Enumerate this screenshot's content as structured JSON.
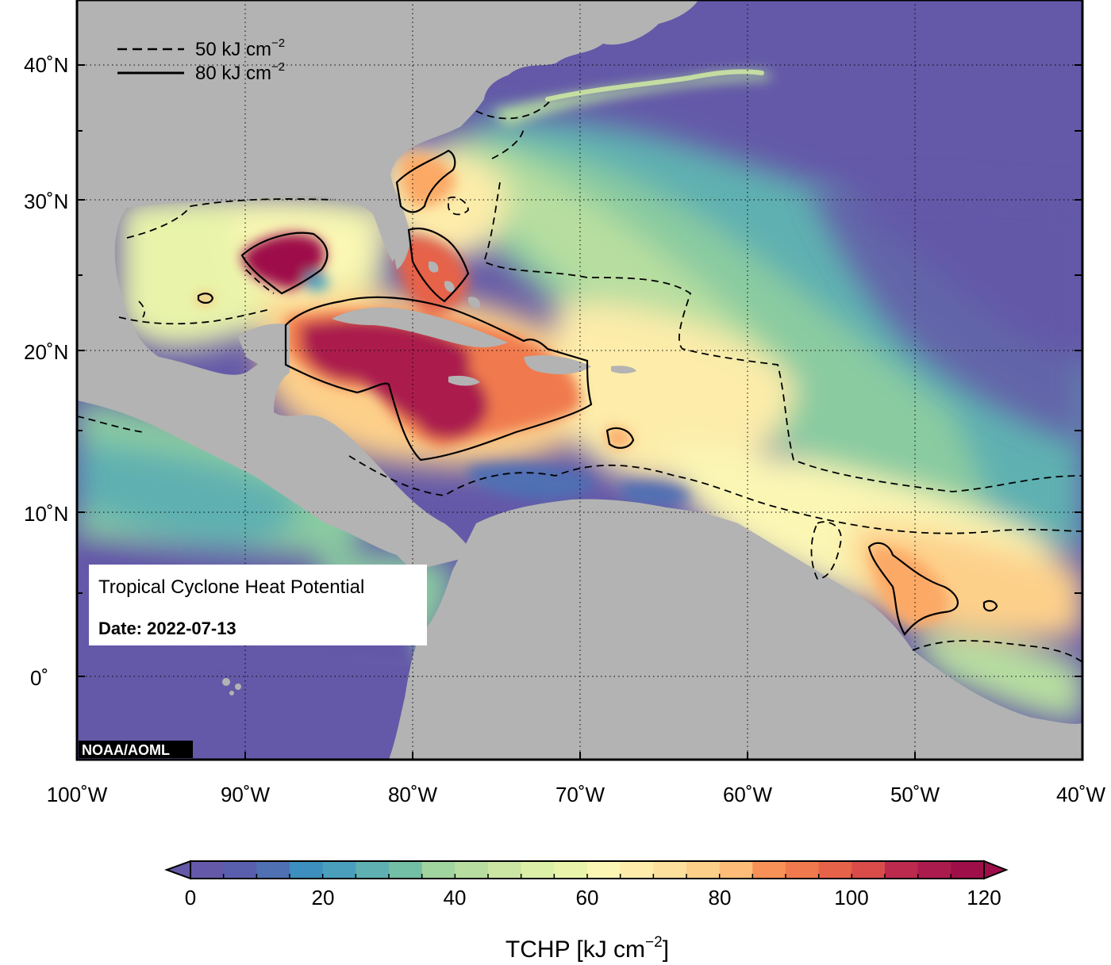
{
  "map": {
    "info_title": "Tropical Cyclone Heat Potential",
    "info_date": "Date: 2022-07-13",
    "credit": "NOAA/AOML",
    "legend": [
      {
        "style": "dashed",
        "label": "50 kJ cm",
        "sup": "−2"
      },
      {
        "style": "solid",
        "label": "80 kJ cm",
        "sup": "−2"
      }
    ],
    "lon_labels": [
      "100˚W",
      "90˚W",
      "80˚W",
      "70˚W",
      "60˚W",
      "50˚W",
      "40˚W"
    ],
    "lat_labels": [
      "40˚N",
      "30˚N",
      "20˚N",
      "10˚N",
      "0˚"
    ],
    "colors": {
      "land": "#b3b3b3",
      "low_tchp": "#6459a8",
      "frame": "#000000"
    }
  },
  "colorbar": {
    "ticks": [
      "0",
      "20",
      "40",
      "60",
      "80",
      "100",
      "120"
    ],
    "title": "TCHP [kJ cm",
    "title_sup": "−2",
    "title_close": "]",
    "min": 0,
    "max": 120,
    "step": 5,
    "palette": [
      "#6459a8",
      "#5a5fad",
      "#4f70b3",
      "#4680b8",
      "#3c8fbe",
      "#4a9fbd",
      "#5fb0b1",
      "#72bfa5",
      "#8acba0",
      "#a1d59f",
      "#b7dea0",
      "#cbe6a2",
      "#dcefa6",
      "#e9f4aa",
      "#f3f8b0",
      "#fbf6b4",
      "#fdecaa",
      "#fde09c",
      "#fdd08a",
      "#fdbd78",
      "#fca966",
      "#f79157",
      "#f07a4d",
      "#e66248",
      "#d94c4a",
      "#cc3a4d",
      "#bc2a4e",
      "#ab1b4d",
      "#9e0f4a"
    ]
  }
}
